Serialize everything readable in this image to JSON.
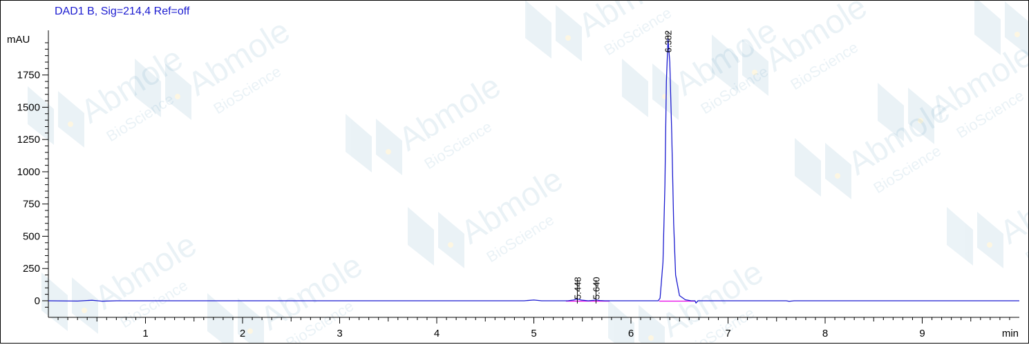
{
  "header": {
    "signal_title": "DAD1 B, Sig=214,4 Ref=off"
  },
  "watermark": {
    "brand": "Abmole",
    "sub": "BioScience",
    "color": "#4a8fb8",
    "accent": "#f2b705"
  },
  "chart_data": {
    "type": "line",
    "title": "DAD1 B, Sig=214,4 Ref=off",
    "xlabel": "min",
    "ylabel": "mAU",
    "xlim": [
      0,
      10.0
    ],
    "ylim": [
      -75,
      2080
    ],
    "x_ticks": [
      1,
      2,
      3,
      4,
      5,
      6,
      7,
      8,
      9
    ],
    "y_ticks": [
      0,
      250,
      500,
      750,
      1000,
      1250,
      1500,
      1750
    ],
    "grid": false,
    "line_color": "#1a1ad0",
    "baseline_color": "#e600e6",
    "series": [
      {
        "values": [
          [
            0.0,
            0
          ],
          [
            0.3,
            -2
          ],
          [
            0.45,
            4
          ],
          [
            0.55,
            -3
          ],
          [
            0.7,
            0
          ],
          [
            4.9,
            0
          ],
          [
            5.0,
            6
          ],
          [
            5.08,
            0
          ],
          [
            5.35,
            0
          ],
          [
            5.41,
            6
          ],
          [
            5.448,
            14
          ],
          [
            5.49,
            5
          ],
          [
            5.56,
            0
          ],
          [
            5.61,
            3
          ],
          [
            5.64,
            7
          ],
          [
            5.68,
            2
          ],
          [
            5.73,
            0
          ],
          [
            6.28,
            0
          ],
          [
            6.3,
            20
          ],
          [
            6.33,
            300
          ],
          [
            6.35,
            900
          ],
          [
            6.365,
            1700
          ],
          [
            6.382,
            2030
          ],
          [
            6.4,
            1850
          ],
          [
            6.42,
            1300
          ],
          [
            6.44,
            600
          ],
          [
            6.46,
            200
          ],
          [
            6.5,
            40
          ],
          [
            6.56,
            8
          ],
          [
            6.62,
            0
          ],
          [
            6.66,
            0
          ],
          [
            6.67,
            -18
          ],
          [
            6.69,
            0
          ],
          [
            7.6,
            0
          ],
          [
            7.63,
            -4
          ],
          [
            7.68,
            0
          ],
          [
            10.0,
            0
          ]
        ]
      }
    ],
    "baselines": [
      {
        "x": [
          5.33,
          5.6
        ]
      },
      {
        "x": [
          5.6,
          5.78
        ]
      },
      {
        "x": [
          6.29,
          6.66
        ]
      }
    ],
    "peaks": [
      {
        "rt": 5.448,
        "label": "5.448"
      },
      {
        "rt": 5.64,
        "label": "5.640"
      },
      {
        "rt": 6.382,
        "label": "6.382"
      }
    ]
  }
}
